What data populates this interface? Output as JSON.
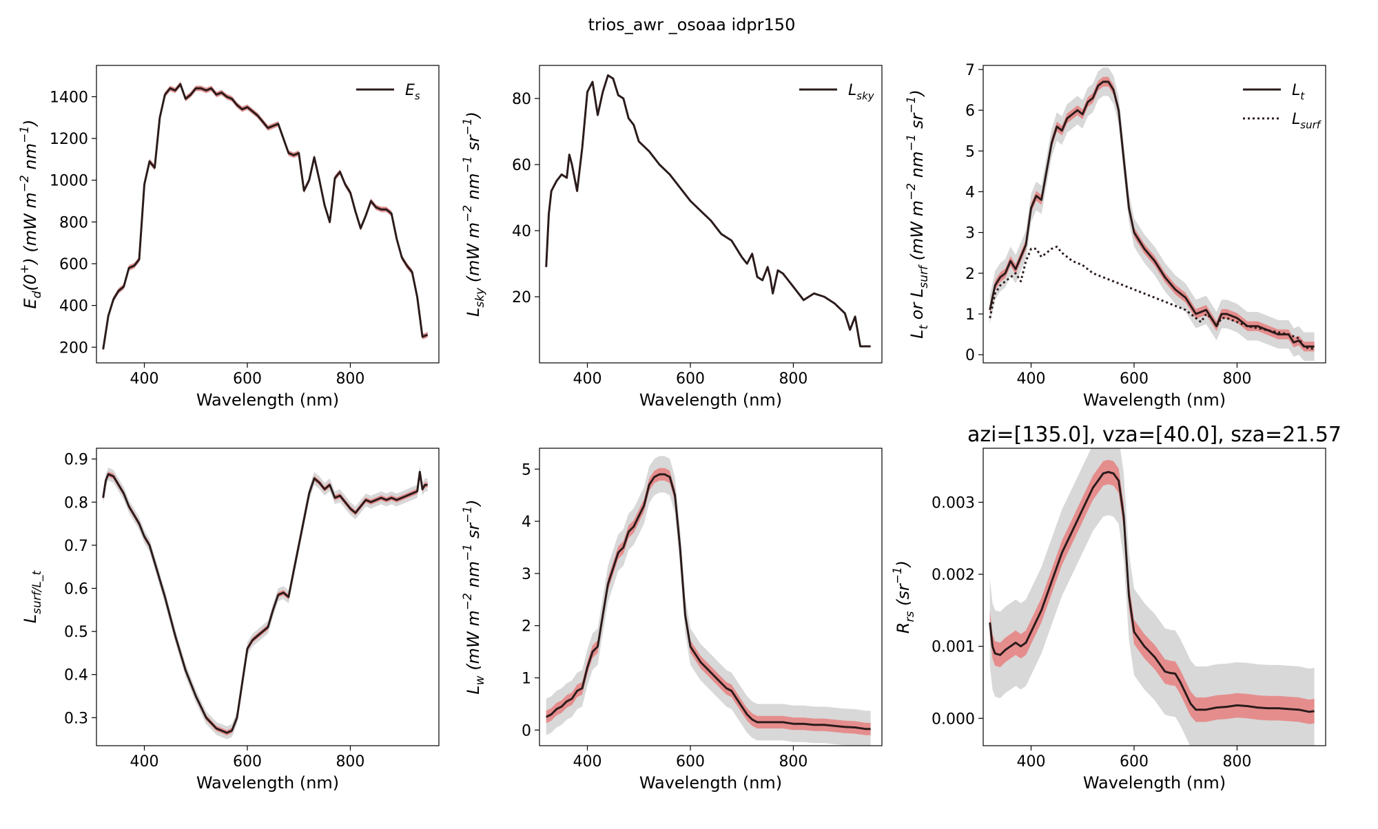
{
  "figure": {
    "title": "trios_awr _osoaa idpr150"
  },
  "colors": {
    "line": "#2b1b1b",
    "red_band": "#e88080",
    "gray_band": "#c8c8c8"
  },
  "chart_data": [
    {
      "type": "line",
      "xlabel": "Wavelength (nm)",
      "ylabel": "E_d(0^+) (mW m^-2 nm^-1)",
      "xlim": [
        307,
        972
      ],
      "ylim": [
        125,
        1550
      ],
      "xticks": [
        400,
        600,
        800
      ],
      "yticks": [
        200,
        400,
        600,
        800,
        1000,
        1200,
        1400
      ],
      "legend": "top-right",
      "series": [
        {
          "name": "E_s",
          "style": "solid",
          "x": [
            320,
            330,
            340,
            350,
            360,
            370,
            380,
            390,
            400,
            410,
            420,
            430,
            440,
            450,
            460,
            470,
            480,
            490,
            500,
            510,
            520,
            530,
            540,
            550,
            560,
            570,
            580,
            590,
            600,
            620,
            640,
            660,
            680,
            690,
            700,
            710,
            720,
            730,
            740,
            750,
            760,
            765,
            770,
            780,
            790,
            800,
            810,
            820,
            830,
            840,
            850,
            860,
            870,
            880,
            890,
            900,
            910,
            920,
            930,
            940,
            950
          ],
          "y": [
            190,
            350,
            430,
            470,
            490,
            580,
            590,
            620,
            980,
            1090,
            1060,
            1300,
            1410,
            1440,
            1430,
            1460,
            1390,
            1410,
            1440,
            1440,
            1430,
            1440,
            1410,
            1420,
            1400,
            1390,
            1360,
            1340,
            1350,
            1310,
            1250,
            1270,
            1130,
            1120,
            1130,
            950,
            1000,
            1110,
            1000,
            880,
            800,
            900,
            1010,
            1040,
            980,
            940,
            850,
            770,
            830,
            900,
            870,
            860,
            860,
            840,
            720,
            630,
            590,
            560,
            440,
            250,
            260
          ],
          "band_red": 12,
          "band_gray": 14
        }
      ]
    },
    {
      "type": "line",
      "xlabel": "Wavelength (nm)",
      "ylabel": "L_sky (mW m^-2 nm^-1 sr^-1)",
      "xlim": [
        307,
        972
      ],
      "ylim": [
        0,
        90
      ],
      "xticks": [
        400,
        600,
        800
      ],
      "yticks": [
        20,
        40,
        60,
        80
      ],
      "legend": "top-right",
      "series": [
        {
          "name": "L_sky",
          "style": "solid",
          "x": [
            320,
            325,
            330,
            340,
            350,
            360,
            365,
            370,
            380,
            390,
            400,
            410,
            420,
            430,
            440,
            450,
            460,
            470,
            480,
            490,
            500,
            520,
            540,
            560,
            580,
            600,
            620,
            640,
            660,
            680,
            700,
            710,
            720,
            730,
            740,
            750,
            755,
            760,
            770,
            780,
            790,
            800,
            820,
            840,
            860,
            880,
            900,
            910,
            920,
            930,
            940,
            950
          ],
          "y": [
            29,
            45,
            52,
            55,
            57,
            56,
            63,
            60,
            52,
            65,
            82,
            85,
            75,
            82,
            87,
            86,
            81,
            80,
            74,
            72,
            67,
            64,
            60,
            57,
            53,
            49,
            46,
            43,
            39,
            37,
            32,
            30,
            33,
            26,
            25,
            29,
            26,
            21,
            28,
            27,
            25,
            23,
            19,
            21,
            20,
            18,
            15,
            10,
            14,
            5,
            5,
            5
          ],
          "band_red": 0.2,
          "band_gray": 0.3
        }
      ]
    },
    {
      "type": "line",
      "xlabel": "Wavelength (nm)",
      "ylabel": "L_t or L_surf (mW m^-2 nm^-1 sr^-1)",
      "xlim": [
        307,
        972
      ],
      "ylim": [
        -0.2,
        7.1
      ],
      "xticks": [
        400,
        600,
        800
      ],
      "yticks": [
        0,
        1,
        2,
        3,
        4,
        5,
        6,
        7
      ],
      "legend": "top-right",
      "series": [
        {
          "name": "L_t",
          "style": "solid",
          "x": [
            320,
            330,
            340,
            350,
            360,
            370,
            380,
            390,
            400,
            410,
            420,
            430,
            440,
            450,
            460,
            470,
            480,
            490,
            500,
            510,
            520,
            530,
            540,
            550,
            560,
            570,
            580,
            590,
            600,
            620,
            640,
            660,
            680,
            700,
            720,
            740,
            750,
            760,
            770,
            780,
            800,
            820,
            840,
            860,
            880,
            900,
            910,
            920,
            930,
            940,
            950
          ],
          "y": [
            1.1,
            1.7,
            1.9,
            2.0,
            2.3,
            2.1,
            2.4,
            2.7,
            3.6,
            3.9,
            3.8,
            4.5,
            5.2,
            5.6,
            5.5,
            5.8,
            5.9,
            6.0,
            5.9,
            6.2,
            6.3,
            6.6,
            6.7,
            6.7,
            6.5,
            6.0,
            4.8,
            3.6,
            3.0,
            2.6,
            2.3,
            1.9,
            1.6,
            1.4,
            1.0,
            1.1,
            0.9,
            0.7,
            1.0,
            1.0,
            0.9,
            0.7,
            0.7,
            0.6,
            0.5,
            0.5,
            0.3,
            0.35,
            0.2,
            0.2,
            0.2
          ],
          "band_red": 0.12,
          "band_gray": 0.35
        },
        {
          "name": "L_surf",
          "style": "dotted",
          "x": [
            320,
            330,
            340,
            350,
            360,
            370,
            380,
            390,
            400,
            410,
            420,
            430,
            440,
            450,
            460,
            470,
            480,
            500,
            520,
            540,
            560,
            580,
            600,
            620,
            640,
            660,
            680,
            700,
            720,
            730,
            740,
            750,
            760,
            770,
            780,
            800,
            820,
            840,
            860,
            880,
            900,
            920,
            930,
            940,
            950
          ],
          "y": [
            0.9,
            1.5,
            1.7,
            1.8,
            1.9,
            2.0,
            1.8,
            2.3,
            2.6,
            2.6,
            2.4,
            2.5,
            2.6,
            2.65,
            2.5,
            2.4,
            2.3,
            2.2,
            2.0,
            1.9,
            1.8,
            1.7,
            1.6,
            1.5,
            1.4,
            1.3,
            1.2,
            1.1,
            0.9,
            0.8,
            1.0,
            0.9,
            0.7,
            0.9,
            0.9,
            0.8,
            0.7,
            0.65,
            0.6,
            0.55,
            0.5,
            0.4,
            0.2,
            0.15,
            0.15
          ],
          "band_red": 0,
          "band_gray": 0
        }
      ]
    },
    {
      "type": "line",
      "xlabel": "Wavelength (nm)",
      "ylabel": "L_surf/L_t",
      "xlim": [
        307,
        972
      ],
      "ylim": [
        0.235,
        0.925
      ],
      "xticks": [
        400,
        600,
        800
      ],
      "yticks": [
        0.3,
        0.4,
        0.5,
        0.6,
        0.7,
        0.8,
        0.9
      ],
      "legend": "none",
      "series": [
        {
          "name": "",
          "style": "solid",
          "x": [
            320,
            325,
            330,
            340,
            350,
            360,
            370,
            380,
            390,
            400,
            410,
            420,
            440,
            460,
            480,
            500,
            520,
            540,
            550,
            560,
            570,
            580,
            590,
            600,
            610,
            620,
            640,
            650,
            660,
            670,
            680,
            690,
            700,
            710,
            720,
            730,
            740,
            750,
            760,
            770,
            780,
            790,
            800,
            810,
            820,
            830,
            840,
            850,
            860,
            870,
            880,
            890,
            900,
            910,
            920,
            930,
            935,
            940,
            945,
            950
          ],
          "y": [
            0.81,
            0.85,
            0.865,
            0.86,
            0.84,
            0.82,
            0.79,
            0.77,
            0.75,
            0.72,
            0.7,
            0.66,
            0.58,
            0.49,
            0.41,
            0.35,
            0.3,
            0.275,
            0.27,
            0.265,
            0.27,
            0.3,
            0.38,
            0.46,
            0.48,
            0.49,
            0.51,
            0.55,
            0.585,
            0.59,
            0.58,
            0.64,
            0.7,
            0.76,
            0.82,
            0.855,
            0.845,
            0.83,
            0.84,
            0.81,
            0.815,
            0.8,
            0.785,
            0.775,
            0.79,
            0.805,
            0.8,
            0.805,
            0.81,
            0.805,
            0.81,
            0.805,
            0.81,
            0.815,
            0.82,
            0.825,
            0.87,
            0.83,
            0.84,
            0.84
          ],
          "band_red": 0.006,
          "band_gray": 0.015
        }
      ]
    },
    {
      "type": "line",
      "xlabel": "Wavelength (nm)",
      "ylabel": "L_w (mW m^-2 nm^-1 sr^-1)",
      "xlim": [
        307,
        972
      ],
      "ylim": [
        -0.3,
        5.4
      ],
      "xticks": [
        400,
        600,
        800
      ],
      "yticks": [
        0,
        1,
        2,
        3,
        4,
        5
      ],
      "legend": "none",
      "series": [
        {
          "name": "",
          "style": "solid",
          "x": [
            320,
            330,
            340,
            350,
            360,
            370,
            380,
            390,
            400,
            410,
            420,
            430,
            440,
            450,
            460,
            470,
            480,
            490,
            500,
            510,
            520,
            530,
            540,
            550,
            560,
            570,
            580,
            590,
            600,
            620,
            640,
            660,
            670,
            680,
            690,
            700,
            710,
            720,
            730,
            740,
            760,
            780,
            800,
            820,
            840,
            860,
            880,
            900,
            920,
            940,
            950
          ],
          "y": [
            0.25,
            0.3,
            0.4,
            0.45,
            0.55,
            0.6,
            0.75,
            0.8,
            1.2,
            1.5,
            1.6,
            2.2,
            2.8,
            3.1,
            3.4,
            3.5,
            3.8,
            3.9,
            4.1,
            4.3,
            4.7,
            4.85,
            4.9,
            4.9,
            4.85,
            4.5,
            3.5,
            2.2,
            1.6,
            1.3,
            1.1,
            0.9,
            0.8,
            0.75,
            0.6,
            0.45,
            0.3,
            0.2,
            0.15,
            0.15,
            0.15,
            0.15,
            0.12,
            0.12,
            0.1,
            0.1,
            0.08,
            0.06,
            0.05,
            0.02,
            0.02
          ],
          "band_red": 0.12,
          "band_gray": 0.35
        }
      ]
    },
    {
      "type": "line",
      "title": "azi=[135.0], vza=[40.0], sza=21.57",
      "xlabel": "Wavelength (nm)",
      "ylabel": "R_rs (sr^-1)",
      "xlim": [
        307,
        972
      ],
      "ylim": [
        -0.00038,
        0.00375
      ],
      "xticks": [
        400,
        600,
        800
      ],
      "yticks": [
        0.0,
        0.001,
        0.002,
        0.003
      ],
      "ytick_labels": [
        "0.000",
        "0.001",
        "0.002",
        "0.003"
      ],
      "legend": "none",
      "series": [
        {
          "name": "",
          "style": "solid",
          "x": [
            320,
            325,
            330,
            340,
            350,
            360,
            370,
            380,
            390,
            400,
            420,
            440,
            460,
            480,
            500,
            520,
            530,
            540,
            550,
            560,
            570,
            580,
            590,
            600,
            620,
            640,
            660,
            670,
            680,
            690,
            700,
            710,
            720,
            740,
            760,
            780,
            800,
            820,
            840,
            860,
            880,
            900,
            920,
            940,
            950
          ],
          "y": [
            0.00133,
            0.001,
            0.0009,
            0.00088,
            0.00095,
            0.001,
            0.00105,
            0.001,
            0.00105,
            0.0012,
            0.0015,
            0.0019,
            0.0023,
            0.0026,
            0.0029,
            0.0032,
            0.0033,
            0.0034,
            0.00342,
            0.0034,
            0.0033,
            0.0028,
            0.0017,
            0.0012,
            0.001,
            0.00085,
            0.00065,
            0.00063,
            0.00062,
            0.0005,
            0.00035,
            0.0002,
            0.00012,
            0.00012,
            0.00015,
            0.00016,
            0.00018,
            0.00017,
            0.00015,
            0.00014,
            0.00014,
            0.00013,
            0.00012,
            9e-05,
            0.0001
          ],
          "band_red": 0.00017,
          "band_gray": 0.0006
        }
      ]
    }
  ]
}
